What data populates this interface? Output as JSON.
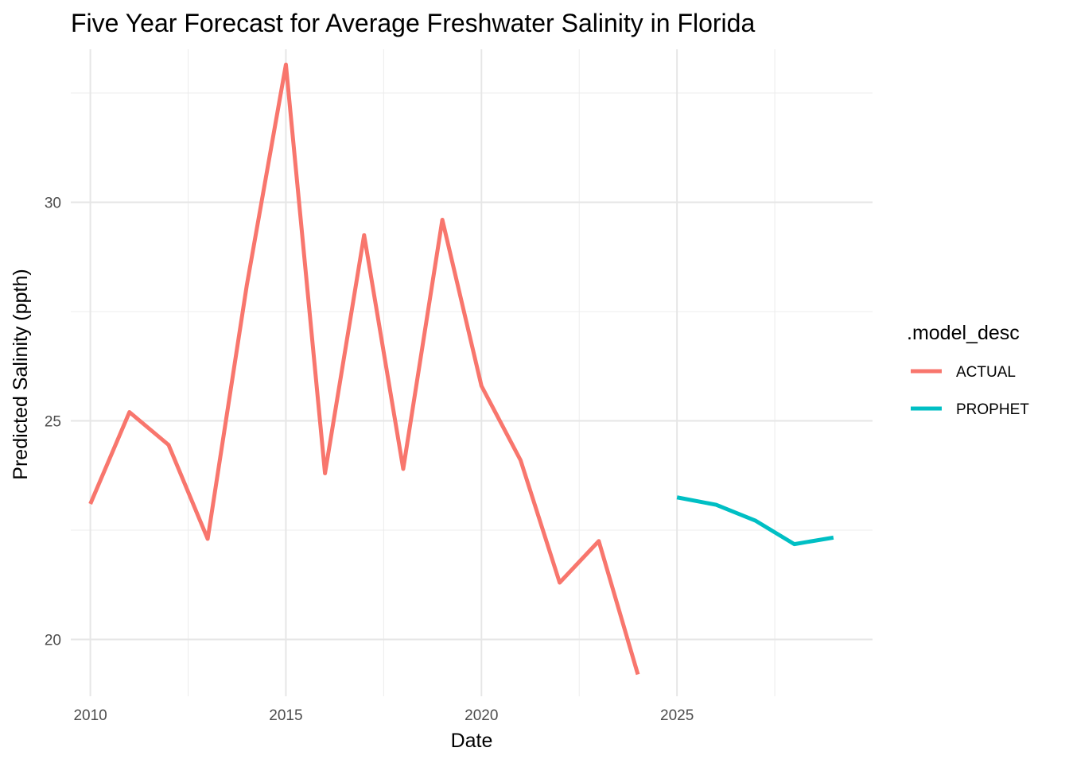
{
  "chart_data": {
    "type": "line",
    "title": "Five Year Forecast for Average Freshwater Salinity in Florida",
    "xlabel": "Date",
    "ylabel": "Predicted Salinity (ppth)",
    "xlim": [
      2009.5,
      2030.0
    ],
    "ylim": [
      18.7,
      33.5
    ],
    "x_ticks": [
      2010,
      2015,
      2020,
      2025
    ],
    "x_tick_labels": [
      "2010",
      "2015",
      "2020",
      "2025"
    ],
    "x_minor_ticks": [
      2012.5,
      2017.5,
      2022.5,
      2027.5
    ],
    "y_ticks": [
      20,
      25,
      30
    ],
    "y_tick_labels": [
      "20",
      "25",
      "30"
    ],
    "y_minor_ticks": [
      22.5,
      27.5,
      32.5
    ],
    "grid": true,
    "legend": {
      "title": ".model_desc",
      "position": "right"
    },
    "series": [
      {
        "name": "ACTUAL",
        "color": "#F8766D",
        "x": [
          2010,
          2011,
          2012,
          2013,
          2014,
          2015,
          2016,
          2017,
          2018,
          2019,
          2020,
          2021,
          2022,
          2023,
          2024
        ],
        "y": [
          23.1,
          25.2,
          24.45,
          22.3,
          28.1,
          33.15,
          23.8,
          29.25,
          23.9,
          29.6,
          25.8,
          24.1,
          21.3,
          22.25,
          19.2
        ]
      },
      {
        "name": "PROPHET",
        "color": "#00BFC4",
        "x": [
          2025,
          2026,
          2027,
          2028,
          2029
        ],
        "y": [
          23.25,
          23.08,
          22.72,
          22.18,
          22.33
        ]
      }
    ]
  }
}
